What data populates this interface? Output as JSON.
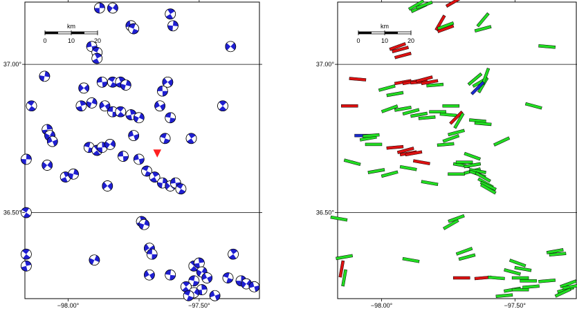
{
  "colors": {
    "beachball_blue": "#1f1fd0",
    "bar_green": "#22dd22",
    "bar_red": "#dd1111",
    "bar_blue": "#1a2bd0",
    "star_red": "#ff2020",
    "frame": "#000000"
  },
  "scale_bar": {
    "unit": "km",
    "ticks": [
      "0",
      "10",
      "20"
    ]
  },
  "axes": {
    "lon_ticks": [
      {
        "value": -98.0,
        "label": "−98.00°"
      },
      {
        "value": -97.5,
        "label": "−97.50°"
      }
    ],
    "lat_ticks": [
      {
        "value": 37.0,
        "label": "37.00°"
      },
      {
        "value": 36.5,
        "label": "36.50°"
      }
    ],
    "lon_range": [
      -98.165,
      -97.27
    ],
    "lat_range": [
      36.21,
      37.21
    ]
  },
  "left_panel": {
    "mechanism_symbol": "beachball",
    "events": [
      {
        "lon": -97.88,
        "lat": 37.19
      },
      {
        "lon": -97.83,
        "lat": 37.19
      },
      {
        "lon": -97.76,
        "lat": 37.13
      },
      {
        "lon": -97.75,
        "lat": 37.12
      },
      {
        "lon": -97.61,
        "lat": 37.17
      },
      {
        "lon": -97.6,
        "lat": 37.13
      },
      {
        "lon": -97.38,
        "lat": 37.06
      },
      {
        "lon": -97.91,
        "lat": 37.06
      },
      {
        "lon": -97.89,
        "lat": 37.04
      },
      {
        "lon": -97.89,
        "lat": 37.02
      },
      {
        "lon": -98.09,
        "lat": 36.96
      },
      {
        "lon": -97.94,
        "lat": 36.92
      },
      {
        "lon": -97.87,
        "lat": 36.94
      },
      {
        "lon": -97.83,
        "lat": 36.94
      },
      {
        "lon": -97.8,
        "lat": 36.94
      },
      {
        "lon": -97.78,
        "lat": 36.93
      },
      {
        "lon": -97.62,
        "lat": 36.94
      },
      {
        "lon": -97.64,
        "lat": 36.91
      },
      {
        "lon": -98.14,
        "lat": 36.86
      },
      {
        "lon": -97.95,
        "lat": 36.86
      },
      {
        "lon": -97.91,
        "lat": 36.87
      },
      {
        "lon": -97.86,
        "lat": 36.86
      },
      {
        "lon": -97.83,
        "lat": 36.84
      },
      {
        "lon": -97.8,
        "lat": 36.84
      },
      {
        "lon": -97.76,
        "lat": 36.83
      },
      {
        "lon": -97.73,
        "lat": 36.82
      },
      {
        "lon": -97.65,
        "lat": 36.86
      },
      {
        "lon": -97.61,
        "lat": 36.82
      },
      {
        "lon": -97.41,
        "lat": 36.86
      },
      {
        "lon": -98.08,
        "lat": 36.78
      },
      {
        "lon": -98.07,
        "lat": 36.76
      },
      {
        "lon": -98.06,
        "lat": 36.74
      },
      {
        "lon": -97.92,
        "lat": 36.72
      },
      {
        "lon": -97.89,
        "lat": 36.71
      },
      {
        "lon": -97.87,
        "lat": 36.72
      },
      {
        "lon": -97.84,
        "lat": 36.73
      },
      {
        "lon": -97.75,
        "lat": 36.76
      },
      {
        "lon": -97.63,
        "lat": 36.75
      },
      {
        "lon": -97.53,
        "lat": 36.75
      },
      {
        "lon": -98.16,
        "lat": 36.68
      },
      {
        "lon": -98.08,
        "lat": 36.66
      },
      {
        "lon": -97.73,
        "lat": 36.68
      },
      {
        "lon": -97.7,
        "lat": 36.64
      },
      {
        "lon": -97.67,
        "lat": 36.62
      },
      {
        "lon": -97.64,
        "lat": 36.6
      },
      {
        "lon": -97.61,
        "lat": 36.59
      },
      {
        "lon": -97.59,
        "lat": 36.6
      },
      {
        "lon": -97.57,
        "lat": 36.58
      },
      {
        "lon": -98.01,
        "lat": 36.62
      },
      {
        "lon": -97.98,
        "lat": 36.63
      },
      {
        "lon": -97.85,
        "lat": 36.59
      },
      {
        "lon": -97.79,
        "lat": 36.69
      },
      {
        "lon": -98.16,
        "lat": 36.5
      },
      {
        "lon": -97.72,
        "lat": 36.47
      },
      {
        "lon": -97.71,
        "lat": 36.46
      },
      {
        "lon": -97.69,
        "lat": 36.38
      },
      {
        "lon": -97.68,
        "lat": 36.36
      },
      {
        "lon": -98.16,
        "lat": 36.36
      },
      {
        "lon": -98.16,
        "lat": 36.32
      },
      {
        "lon": -97.9,
        "lat": 36.34
      },
      {
        "lon": -97.69,
        "lat": 36.29
      },
      {
        "lon": -97.61,
        "lat": 36.29
      },
      {
        "lon": -97.52,
        "lat": 36.32
      },
      {
        "lon": -97.5,
        "lat": 36.33
      },
      {
        "lon": -97.49,
        "lat": 36.3
      },
      {
        "lon": -97.47,
        "lat": 36.28
      },
      {
        "lon": -97.52,
        "lat": 36.27
      },
      {
        "lon": -97.55,
        "lat": 36.25
      },
      {
        "lon": -97.49,
        "lat": 36.24
      },
      {
        "lon": -97.52,
        "lat": 36.23
      },
      {
        "lon": -97.44,
        "lat": 36.22
      },
      {
        "lon": -97.39,
        "lat": 36.28
      },
      {
        "lon": -97.37,
        "lat": 36.36
      },
      {
        "lon": -97.34,
        "lat": 36.27
      },
      {
        "lon": -97.32,
        "lat": 36.26
      },
      {
        "lon": -97.29,
        "lat": 36.25
      },
      {
        "lon": -97.54,
        "lat": 36.22
      }
    ],
    "star": {
      "lon": -97.66,
      "lat": 36.7
    }
  },
  "right_panel": {
    "bars": [
      {
        "lon": -97.87,
        "lat": 37.2,
        "az": 30,
        "color": "green"
      },
      {
        "lon": -97.86,
        "lat": 37.19,
        "az": 25,
        "color": "green"
      },
      {
        "lon": -97.84,
        "lat": 37.2,
        "az": 20,
        "color": "green"
      },
      {
        "lon": -97.73,
        "lat": 37.21,
        "az": 30,
        "color": "red"
      },
      {
        "lon": -97.78,
        "lat": 37.14,
        "az": 60,
        "color": "red"
      },
      {
        "lon": -97.76,
        "lat": 37.12,
        "az": 20,
        "color": "red"
      },
      {
        "lon": -97.76,
        "lat": 37.13,
        "az": 20,
        "color": "green"
      },
      {
        "lon": -97.62,
        "lat": 37.15,
        "az": 50,
        "color": "green"
      },
      {
        "lon": -97.62,
        "lat": 37.12,
        "az": 15,
        "color": "green"
      },
      {
        "lon": -97.94,
        "lat": 37.06,
        "az": 20,
        "color": "red"
      },
      {
        "lon": -97.93,
        "lat": 37.05,
        "az": 15,
        "color": "red"
      },
      {
        "lon": -97.92,
        "lat": 37.03,
        "az": 15,
        "color": "red"
      },
      {
        "lon": -97.38,
        "lat": 37.06,
        "az": -5,
        "color": "green"
      },
      {
        "lon": -98.09,
        "lat": 36.95,
        "az": -5,
        "color": "red"
      },
      {
        "lon": -97.98,
        "lat": 36.92,
        "az": 15,
        "color": "green"
      },
      {
        "lon": -97.95,
        "lat": 36.9,
        "az": 10,
        "color": "green"
      },
      {
        "lon": -97.92,
        "lat": 36.94,
        "az": 10,
        "color": "red"
      },
      {
        "lon": -97.89,
        "lat": 36.94,
        "az": 10,
        "color": "red"
      },
      {
        "lon": -97.86,
        "lat": 36.94,
        "az": 5,
        "color": "red"
      },
      {
        "lon": -97.84,
        "lat": 36.95,
        "az": 15,
        "color": "red"
      },
      {
        "lon": -97.82,
        "lat": 36.94,
        "az": 10,
        "color": "red"
      },
      {
        "lon": -97.8,
        "lat": 36.93,
        "az": 5,
        "color": "green"
      },
      {
        "lon": -97.65,
        "lat": 36.95,
        "az": 40,
        "color": "green"
      },
      {
        "lon": -97.63,
        "lat": 36.94,
        "az": 30,
        "color": "green"
      },
      {
        "lon": -97.62,
        "lat": 36.93,
        "az": 60,
        "color": "green"
      },
      {
        "lon": -97.61,
        "lat": 36.96,
        "az": 70,
        "color": "green"
      },
      {
        "lon": -97.64,
        "lat": 36.92,
        "az": 45,
        "color": "blue"
      },
      {
        "lon": -98.12,
        "lat": 36.86,
        "az": 0,
        "color": "red"
      },
      {
        "lon": -97.97,
        "lat": 36.85,
        "az": 20,
        "color": "green"
      },
      {
        "lon": -97.92,
        "lat": 36.85,
        "az": 10,
        "color": "green"
      },
      {
        "lon": -97.89,
        "lat": 36.84,
        "az": 15,
        "color": "green"
      },
      {
        "lon": -97.86,
        "lat": 36.83,
        "az": 10,
        "color": "green"
      },
      {
        "lon": -97.83,
        "lat": 36.82,
        "az": 5,
        "color": "green"
      },
      {
        "lon": -97.79,
        "lat": 36.84,
        "az": 0,
        "color": "green"
      },
      {
        "lon": -97.75,
        "lat": 36.83,
        "az": -5,
        "color": "green"
      },
      {
        "lon": -97.74,
        "lat": 36.86,
        "az": 0,
        "color": "green"
      },
      {
        "lon": -97.72,
        "lat": 36.82,
        "az": 45,
        "color": "red"
      },
      {
        "lon": -97.71,
        "lat": 36.81,
        "az": 60,
        "color": "green"
      },
      {
        "lon": -97.64,
        "lat": 36.81,
        "az": -5,
        "color": "green"
      },
      {
        "lon": -97.62,
        "lat": 36.8,
        "az": -5,
        "color": "green"
      },
      {
        "lon": -97.43,
        "lat": 36.86,
        "az": -15,
        "color": "green"
      },
      {
        "lon": -98.07,
        "lat": 36.76,
        "az": 0,
        "color": "blue"
      },
      {
        "lon": -98.05,
        "lat": 36.75,
        "az": 10,
        "color": "green"
      },
      {
        "lon": -98.04,
        "lat": 36.76,
        "az": 5,
        "color": "green"
      },
      {
        "lon": -98.03,
        "lat": 36.73,
        "az": 0,
        "color": "green"
      },
      {
        "lon": -97.95,
        "lat": 36.72,
        "az": 5,
        "color": "red"
      },
      {
        "lon": -97.91,
        "lat": 36.71,
        "az": 15,
        "color": "red"
      },
      {
        "lon": -97.9,
        "lat": 36.7,
        "az": 10,
        "color": "red"
      },
      {
        "lon": -97.88,
        "lat": 36.7,
        "az": 10,
        "color": "red"
      },
      {
        "lon": -97.85,
        "lat": 36.67,
        "az": -10,
        "color": "red"
      },
      {
        "lon": -97.76,
        "lat": 36.73,
        "az": 5,
        "color": "green"
      },
      {
        "lon": -97.74,
        "lat": 36.75,
        "az": 20,
        "color": "green"
      },
      {
        "lon": -97.72,
        "lat": 36.77,
        "az": 15,
        "color": "green"
      },
      {
        "lon": -97.55,
        "lat": 36.74,
        "az": 25,
        "color": "green"
      },
      {
        "lon": -98.11,
        "lat": 36.67,
        "az": -15,
        "color": "green"
      },
      {
        "lon": -98.02,
        "lat": 36.64,
        "az": 10,
        "color": "green"
      },
      {
        "lon": -97.97,
        "lat": 36.63,
        "az": 15,
        "color": "green"
      },
      {
        "lon": -97.9,
        "lat": 36.65,
        "az": -10,
        "color": "green"
      },
      {
        "lon": -97.7,
        "lat": 36.66,
        "az": -10,
        "color": "green"
      },
      {
        "lon": -97.69,
        "lat": 36.67,
        "az": 0,
        "color": "green"
      },
      {
        "lon": -97.66,
        "lat": 36.69,
        "az": -20,
        "color": "green"
      },
      {
        "lon": -97.66,
        "lat": 36.66,
        "az": 10,
        "color": "green"
      },
      {
        "lon": -97.66,
        "lat": 36.64,
        "az": 15,
        "color": "green"
      },
      {
        "lon": -97.64,
        "lat": 36.64,
        "az": -10,
        "color": "green"
      },
      {
        "lon": -97.64,
        "lat": 36.63,
        "az": -20,
        "color": "green"
      },
      {
        "lon": -97.62,
        "lat": 36.62,
        "az": -30,
        "color": "green"
      },
      {
        "lon": -97.61,
        "lat": 36.6,
        "az": -30,
        "color": "green"
      },
      {
        "lon": -97.6,
        "lat": 36.59,
        "az": -25,
        "color": "green"
      },
      {
        "lon": -97.6,
        "lat": 36.58,
        "az": -30,
        "color": "green"
      },
      {
        "lon": -97.72,
        "lat": 36.63,
        "az": 0,
        "color": "green"
      },
      {
        "lon": -97.82,
        "lat": 36.6,
        "az": -10,
        "color": "green"
      },
      {
        "lon": -98.16,
        "lat": 36.48,
        "az": -10,
        "color": "green"
      },
      {
        "lon": -97.74,
        "lat": 36.46,
        "az": 30,
        "color": "green"
      },
      {
        "lon": -97.72,
        "lat": 36.48,
        "az": 20,
        "color": "green"
      },
      {
        "lon": -97.69,
        "lat": 36.37,
        "az": 20,
        "color": "green"
      },
      {
        "lon": -97.68,
        "lat": 36.35,
        "az": 15,
        "color": "green"
      },
      {
        "lon": -98.14,
        "lat": 36.35,
        "az": 10,
        "color": "green"
      },
      {
        "lon": -98.15,
        "lat": 36.31,
        "az": 80,
        "color": "red"
      },
      {
        "lon": -98.14,
        "lat": 36.28,
        "az": 80,
        "color": "green"
      },
      {
        "lon": -97.89,
        "lat": 36.34,
        "az": -10,
        "color": "green"
      },
      {
        "lon": -97.7,
        "lat": 36.28,
        "az": 0,
        "color": "red"
      },
      {
        "lon": -97.62,
        "lat": 36.28,
        "az": 5,
        "color": "red"
      },
      {
        "lon": -97.57,
        "lat": 36.28,
        "az": -5,
        "color": "green"
      },
      {
        "lon": -97.51,
        "lat": 36.3,
        "az": -15,
        "color": "green"
      },
      {
        "lon": -97.49,
        "lat": 36.33,
        "az": -20,
        "color": "green"
      },
      {
        "lon": -97.47,
        "lat": 36.31,
        "az": -10,
        "color": "green"
      },
      {
        "lon": -97.48,
        "lat": 36.28,
        "az": 0,
        "color": "green"
      },
      {
        "lon": -97.45,
        "lat": 36.27,
        "az": 0,
        "color": "green"
      },
      {
        "lon": -97.51,
        "lat": 36.24,
        "az": 10,
        "color": "green"
      },
      {
        "lon": -97.48,
        "lat": 36.24,
        "az": 0,
        "color": "green"
      },
      {
        "lon": -97.44,
        "lat": 36.25,
        "az": 5,
        "color": "green"
      },
      {
        "lon": -97.54,
        "lat": 36.22,
        "az": 5,
        "color": "green"
      },
      {
        "lon": -97.38,
        "lat": 36.27,
        "az": 5,
        "color": "green"
      },
      {
        "lon": -97.35,
        "lat": 36.37,
        "az": 10,
        "color": "green"
      },
      {
        "lon": -97.34,
        "lat": 36.36,
        "az": 5,
        "color": "green"
      },
      {
        "lon": -97.31,
        "lat": 36.24,
        "az": 15,
        "color": "green"
      },
      {
        "lon": -97.3,
        "lat": 36.26,
        "az": 20,
        "color": "green"
      },
      {
        "lon": -97.29,
        "lat": 36.25,
        "az": 10,
        "color": "green"
      },
      {
        "lon": -97.32,
        "lat": 36.23,
        "az": 25,
        "color": "green"
      }
    ]
  }
}
